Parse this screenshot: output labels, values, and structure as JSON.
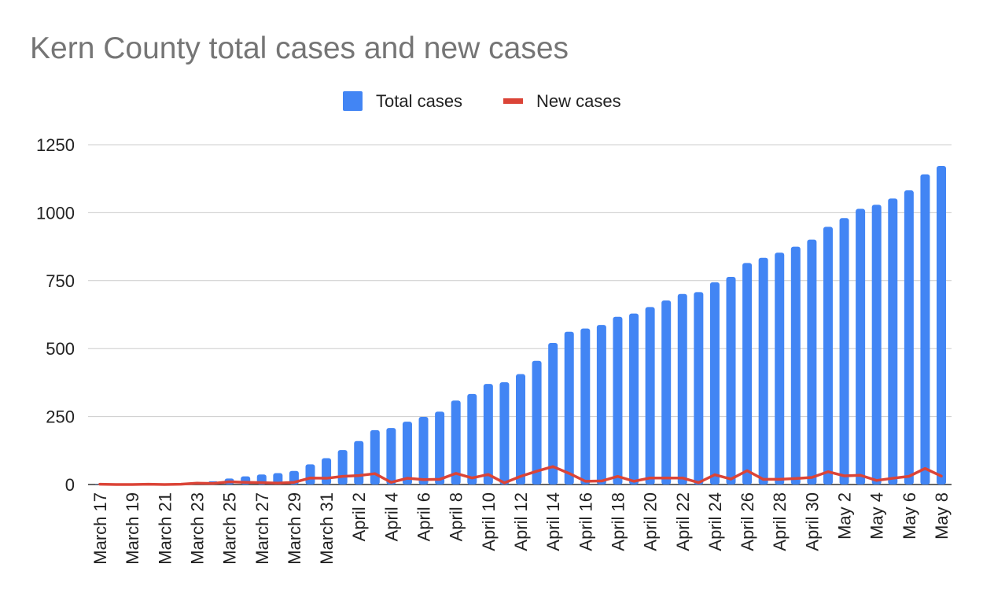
{
  "chart_data": {
    "type": "bar",
    "title": "Kern County total cases and new cases",
    "xlabel": "",
    "ylabel": "",
    "ylim": [
      0,
      1250
    ],
    "yticks": [
      0,
      250,
      500,
      750,
      1000,
      1250
    ],
    "grid": true,
    "legend_position": "top",
    "categories": [
      "March 17",
      "March 18",
      "March 19",
      "March 20",
      "March 21",
      "March 22",
      "March 23",
      "March 24",
      "March 25",
      "March 26",
      "March 27",
      "March 28",
      "March 29",
      "March 30",
      "March 31",
      "April 1",
      "April 2",
      "April 3",
      "April 4",
      "April 5",
      "April 6",
      "April 7",
      "April 8",
      "April 9",
      "April 10",
      "April 11",
      "April 12",
      "April 13",
      "April 14",
      "April 15",
      "April 16",
      "April 17",
      "April 18",
      "April 19",
      "April 20",
      "April 21",
      "April 22",
      "April 23",
      "April 24",
      "April 25",
      "April 26",
      "April 27",
      "April 28",
      "April 29",
      "April 30",
      "May 1",
      "May 2",
      "May 3",
      "May 4",
      "May 5",
      "May 6",
      "May 7",
      "May 8"
    ],
    "shown_tick_labels": [
      "March 17",
      "March 19",
      "March 21",
      "March 23",
      "March 25",
      "March 27",
      "March 29",
      "March 31",
      "April 2",
      "April 4",
      "April 6",
      "April 8",
      "April 10",
      "April 12",
      "April 14",
      "April 16",
      "April 18",
      "April 20",
      "April 22",
      "April 24",
      "April 26",
      "April 28",
      "April 30",
      "May 2",
      "May 4",
      "May 6",
      "May 8"
    ],
    "series": [
      {
        "name": "Total cases",
        "type": "bar",
        "color": "#4285f4",
        "values": [
          1,
          1,
          1,
          2,
          2,
          3,
          8,
          12,
          22,
          30,
          37,
          42,
          50,
          74,
          97,
          127,
          160,
          200,
          208,
          231,
          249,
          268,
          309,
          333,
          370,
          376,
          406,
          455,
          521,
          562,
          574,
          587,
          617,
          629,
          653,
          677,
          701,
          708,
          744,
          764,
          815,
          834,
          853,
          875,
          901,
          948,
          980,
          1014,
          1029,
          1052,
          1082,
          1141,
          1172
        ]
      },
      {
        "name": "New cases",
        "type": "line",
        "color": "#db4437",
        "values": [
          1,
          0,
          0,
          1,
          0,
          1,
          5,
          4,
          10,
          8,
          7,
          5,
          8,
          24,
          23,
          30,
          33,
          40,
          8,
          23,
          18,
          19,
          41,
          24,
          37,
          6,
          30,
          49,
          66,
          41,
          12,
          13,
          30,
          12,
          24,
          24,
          24,
          7,
          36,
          20,
          51,
          19,
          19,
          22,
          26,
          47,
          32,
          34,
          15,
          23,
          30,
          59,
          31
        ]
      }
    ]
  }
}
